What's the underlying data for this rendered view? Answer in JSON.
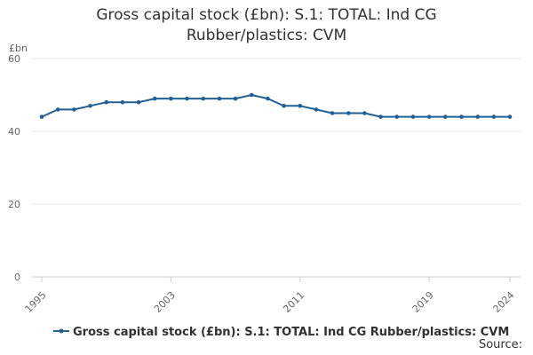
{
  "chart_data": {
    "type": "line",
    "title_lines": [
      "Gross capital stock (£bn): S.1: TOTAL: Ind CG",
      "Rubber/plastics: CVM"
    ],
    "ylabel": "£bn",
    "xlabel": "",
    "ylim": [
      0,
      60
    ],
    "yticks": [
      0,
      20,
      40,
      60
    ],
    "xlim": [
      1995,
      2024
    ],
    "xticks": [
      "1995",
      "2003",
      "2011",
      "2019",
      "2024"
    ],
    "grid": true,
    "legend_position": "bottom",
    "series": [
      {
        "name": "Gross capital stock (£bn): S.1: TOTAL: Ind CG Rubber/plastics: CVM",
        "color": "#206095",
        "x": [
          1995,
          1996,
          1997,
          1998,
          1999,
          2000,
          2001,
          2002,
          2003,
          2004,
          2005,
          2006,
          2007,
          2008,
          2009,
          2010,
          2011,
          2012,
          2013,
          2014,
          2015,
          2016,
          2017,
          2018,
          2019,
          2020,
          2021,
          2022,
          2023,
          2024
        ],
        "values": [
          44,
          46,
          46,
          47,
          48,
          48,
          48,
          49,
          49,
          49,
          49,
          49,
          49,
          50,
          49,
          47,
          47,
          46,
          45,
          45,
          45,
          44,
          44,
          44,
          44,
          44,
          44,
          44,
          44,
          44
        ]
      }
    ]
  },
  "source_label": "Source:"
}
